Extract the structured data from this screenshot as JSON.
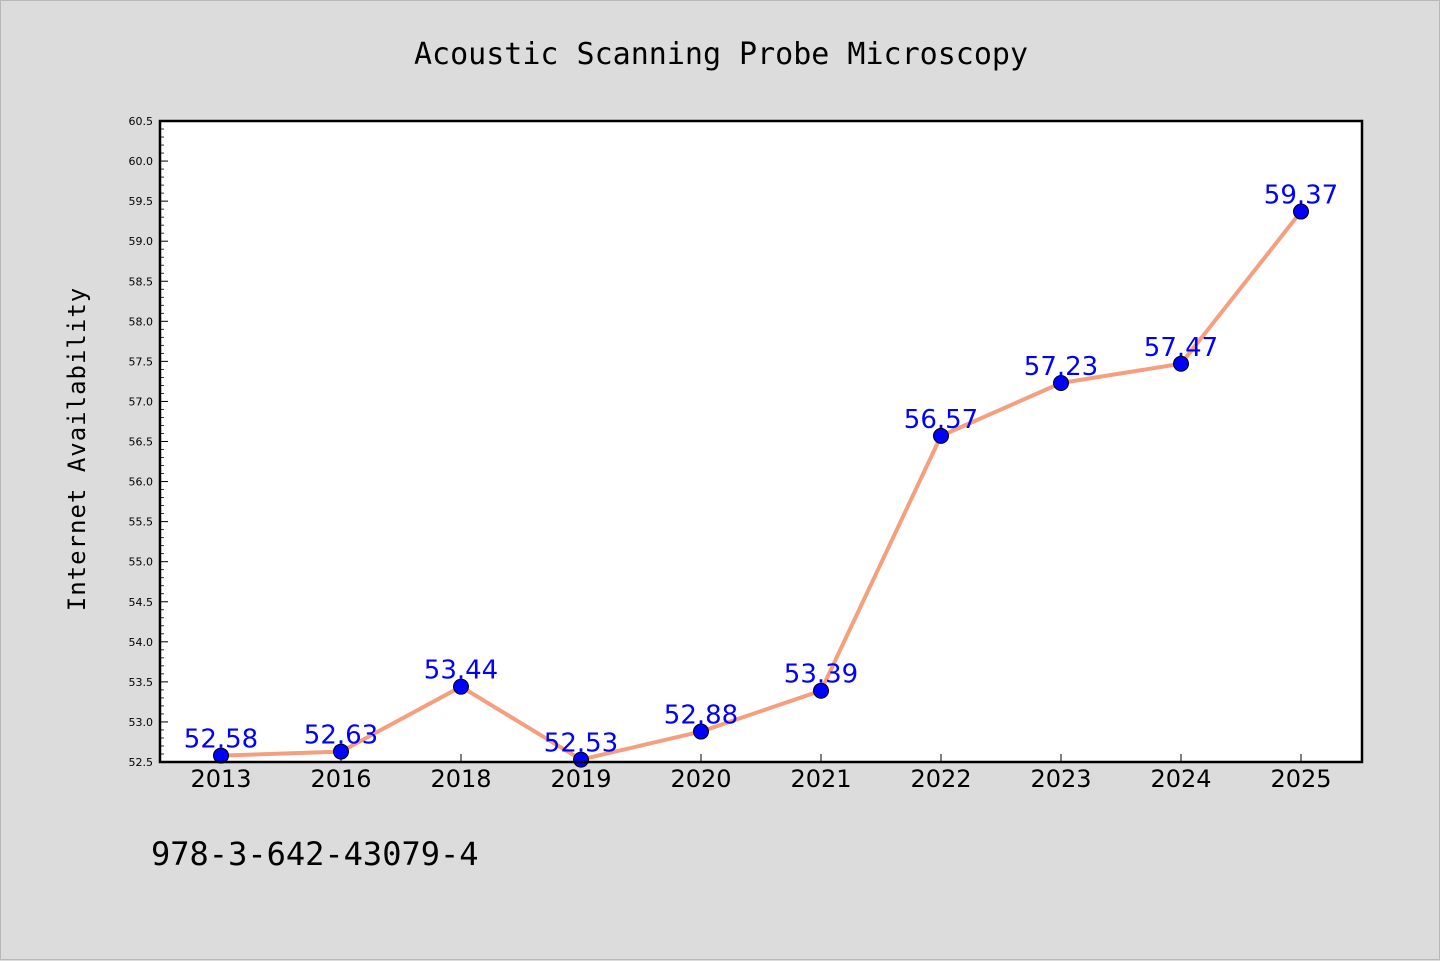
{
  "chart_data": {
    "type": "line",
    "title": "Acoustic Scanning Probe Microscopy",
    "ylabel": "Internet Availability",
    "xlabel": "",
    "categories": [
      "2013",
      "2016",
      "2018",
      "2019",
      "2020",
      "2021",
      "2022",
      "2023",
      "2024",
      "2025"
    ],
    "series": [
      {
        "values": [
          52.58,
          52.63,
          53.44,
          52.53,
          52.88,
          53.39,
          56.57,
          57.23,
          57.47,
          59.37
        ],
        "data_labels": [
          "52.58",
          "52.63",
          "53.44",
          "52.53",
          "52.88",
          "53.39",
          "56.57",
          "57.23",
          "57.47",
          "59.37"
        ]
      }
    ],
    "ylim": [
      52.5,
      60.5
    ],
    "yticks": [
      "52.5",
      "53.0",
      "53.5",
      "54.0",
      "54.5",
      "55.0",
      "55.5",
      "56.0",
      "56.5",
      "57.0",
      "57.5",
      "58.0",
      "58.5",
      "59.0",
      "59.5",
      "60.0",
      "60.5"
    ],
    "grid": false,
    "legend": false,
    "colors": {
      "line": "#f4a07e",
      "marker": "#0000ff",
      "label": "#0000ff",
      "background": "#dcdcdc",
      "plot_background": "#ffffff"
    }
  },
  "footer": {
    "code": "978-3-642-43079-4"
  }
}
